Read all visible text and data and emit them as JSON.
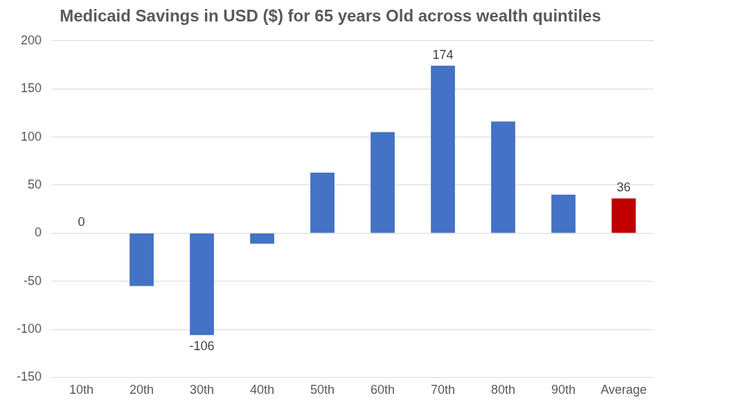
{
  "chart_data": {
    "type": "bar",
    "title": "Medicaid Savings in USD ($) for 65 years Old across wealth quintiles",
    "categories": [
      "10th",
      "20th",
      "30th",
      "40th",
      "50th",
      "60th",
      "70th",
      "80th",
      "90th",
      "Average"
    ],
    "values": [
      0,
      -55,
      -106,
      -11,
      63,
      105,
      174,
      116,
      40,
      36
    ],
    "colors": [
      "#4472c4",
      "#4472c4",
      "#4472c4",
      "#4472c4",
      "#4472c4",
      "#4472c4",
      "#4472c4",
      "#4472c4",
      "#4472c4",
      "#c00000"
    ],
    "value_labels": [
      "0",
      null,
      "-106",
      null,
      null,
      null,
      "174",
      null,
      null,
      "36"
    ],
    "ylim": [
      -150,
      200
    ],
    "yticks": [
      -150,
      -100,
      -50,
      0,
      50,
      100,
      150,
      200
    ],
    "grid": "y",
    "legend": false
  }
}
